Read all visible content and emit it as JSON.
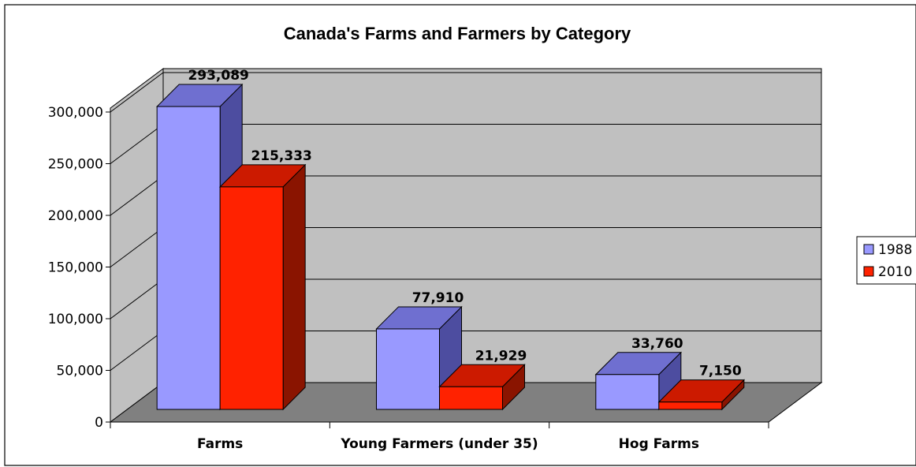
{
  "chart_data": {
    "type": "bar",
    "title": "Canada's Farms and Farmers by Category",
    "categories": [
      "Farms",
      "Young Farmers (under 35)",
      "Hog Farms"
    ],
    "series": [
      {
        "name": "1988",
        "values": [
          293089,
          77910,
          33760
        ],
        "labels": [
          "293,089",
          "77,910",
          "33,760"
        ],
        "color": "#9999ff"
      },
      {
        "name": "2010",
        "values": [
          215333,
          21929,
          7150
        ],
        "labels": [
          "215,333",
          "21,929",
          "7,150"
        ],
        "color": "#ff2200"
      }
    ],
    "yticks": [
      0,
      50000,
      100000,
      150000,
      200000,
      250000,
      300000
    ],
    "ytick_labels": [
      "0",
      "50,000",
      "100,000",
      "150,000",
      "200,000",
      "250,000",
      "300,000"
    ],
    "ylim": [
      0,
      300000
    ],
    "grid": true,
    "three_d": true,
    "legend_position": "right",
    "colors": {
      "wall": "#c0c0c0",
      "floor": "#808080",
      "series1_side": "#4d4da0",
      "series1_top": "#6f6fd0",
      "series2_side": "#8a1400",
      "series2_top": "#cc1a00"
    }
  }
}
